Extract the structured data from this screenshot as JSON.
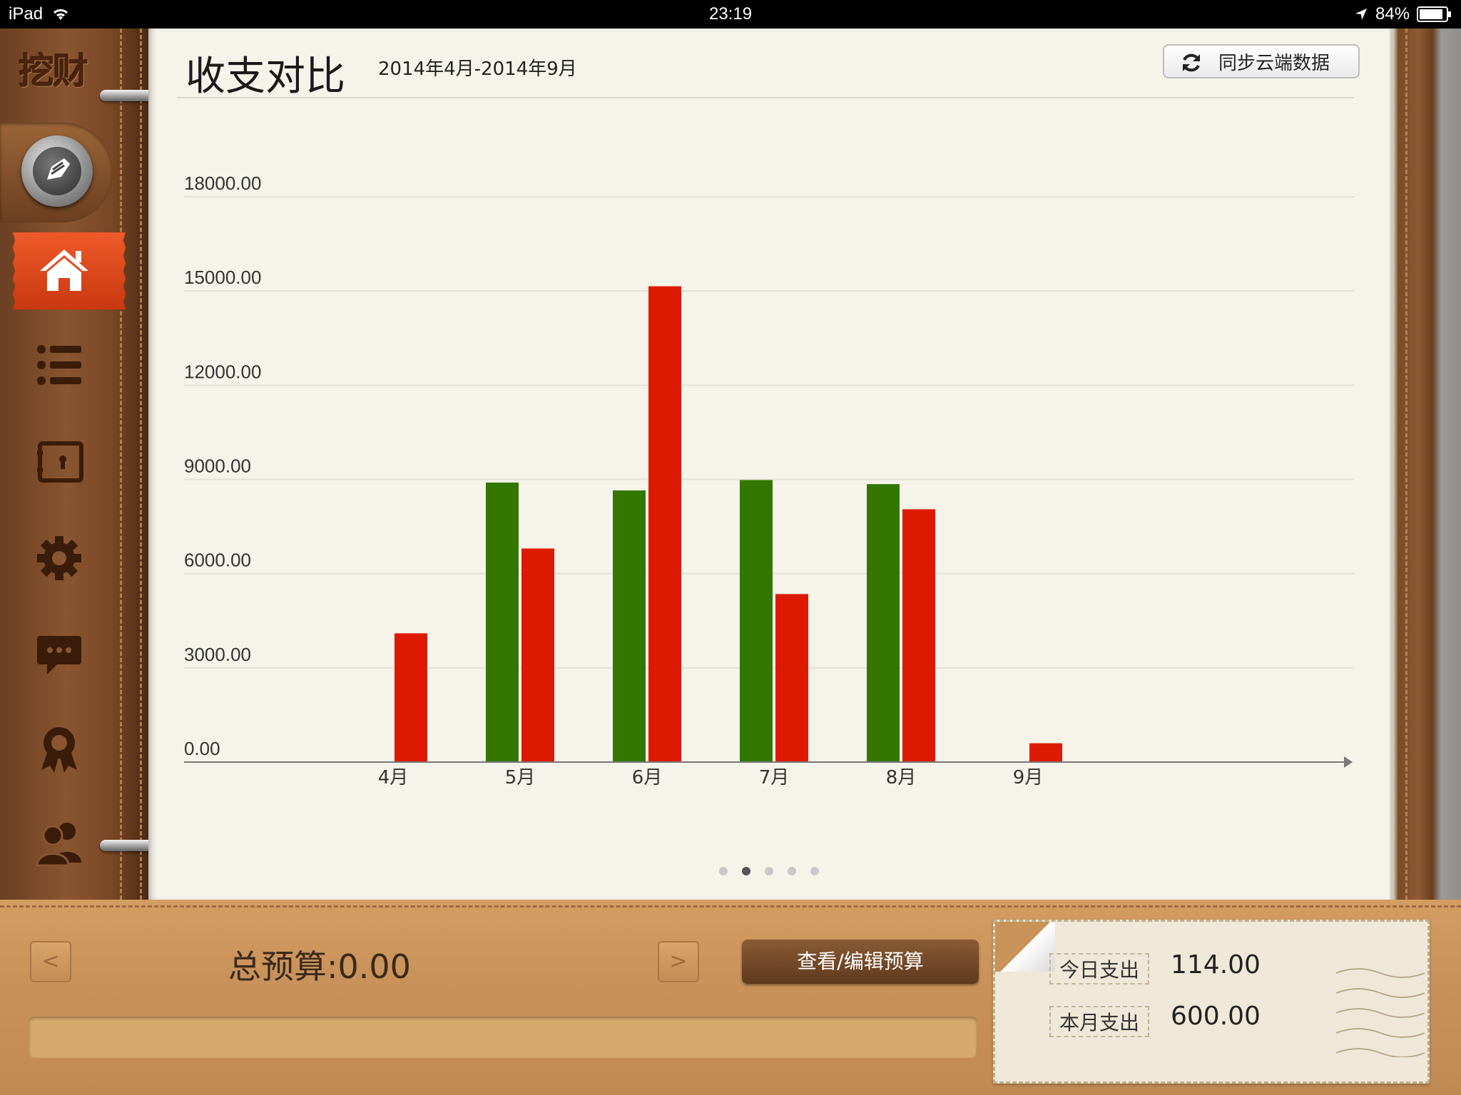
{
  "status_bar": {
    "device": "iPad",
    "time": "23:19",
    "battery": "84%",
    "icons": [
      "wifi-icon",
      "location-arrow-icon",
      "battery-icon"
    ]
  },
  "sidebar": {
    "brand": "挖财",
    "items": [
      {
        "name": "home",
        "icon": "home-icon",
        "active": true
      },
      {
        "name": "list",
        "icon": "list-icon"
      },
      {
        "name": "accounts",
        "icon": "account-book-icon"
      },
      {
        "name": "settings",
        "icon": "gear-icon"
      },
      {
        "name": "messages",
        "icon": "chat-bubble-icon"
      },
      {
        "name": "rewards",
        "icon": "award-ribbon-icon"
      },
      {
        "name": "users",
        "icon": "users-icon"
      }
    ]
  },
  "header": {
    "title": "收支对比",
    "range": "2014年4月-2014年9月",
    "sync_label": "同步云端数据"
  },
  "chart_data": {
    "type": "bar",
    "categories": [
      "4月",
      "5月",
      "6月",
      "7月",
      "8月",
      "9月"
    ],
    "series": [
      {
        "color": "#337700",
        "values": [
          0,
          8900,
          8650,
          8980,
          8850,
          0
        ]
      },
      {
        "color": "#dd1a00",
        "values": [
          4100,
          6800,
          15150,
          5350,
          8050,
          600
        ]
      }
    ],
    "y_ticks": [
      "0.00",
      "3000.00",
      "6000.00",
      "9000.00",
      "12000.00",
      "15000.00",
      "18000.00"
    ],
    "ylim": [
      0,
      18000
    ],
    "grid": true
  },
  "pager": {
    "count": 5,
    "active": 1
  },
  "budget": {
    "prev_label": "<",
    "next_label": ">",
    "total": "总预算:0.00",
    "button_label": "查看/编辑预算"
  },
  "stamp": {
    "today_label": "今日支出",
    "today_value": "114.00",
    "month_label": "本月支出",
    "month_value": "600.00"
  }
}
